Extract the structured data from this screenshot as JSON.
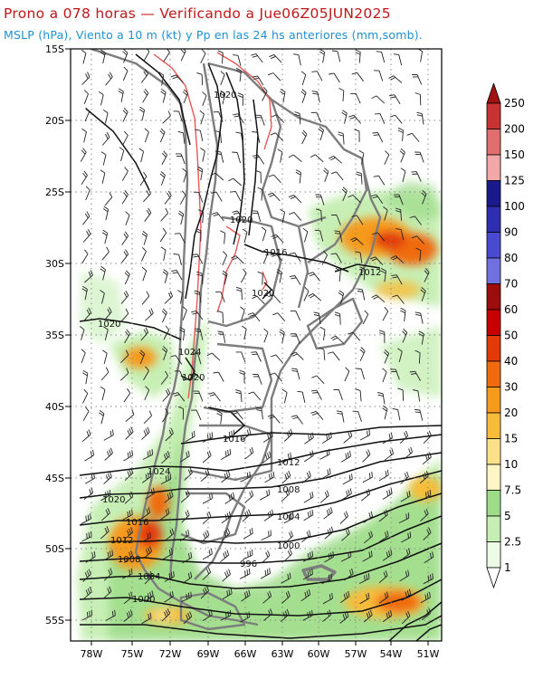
{
  "header": {
    "title": "Prono a 078 horas — Verificando a Jue06Z05JUN2025",
    "subtitle": "MSLP (hPa), Viento a 10 m (kt) y Pp en las 24 hs anteriores (mm,somb)."
  },
  "map": {
    "lat_ticks": [
      "15S",
      "20S",
      "25S",
      "30S",
      "35S",
      "40S",
      "45S",
      "50S",
      "55S"
    ],
    "lon_ticks": [
      "78W",
      "75W",
      "72W",
      "69W",
      "66W",
      "63W",
      "60W",
      "57W",
      "54W",
      "51W"
    ],
    "isobar_labels": [
      "1020",
      "1020",
      "1016",
      "1012",
      "1020",
      "1020",
      "1024",
      "1020",
      "1016",
      "1012",
      "1024",
      "1008",
      "1020",
      "1004",
      "1016",
      "1000",
      "1012",
      "996",
      "1008",
      "1004",
      "1000"
    ]
  },
  "colorbar": {
    "labels": [
      "250",
      "200",
      "150",
      "125",
      "100",
      "90",
      "80",
      "70",
      "60",
      "50",
      "40",
      "30",
      "20",
      "15",
      "10",
      "7.5",
      "5",
      "2.5",
      "1"
    ],
    "colors": [
      "#a11212",
      "#c83232",
      "#e06e6e",
      "#f2a8a8",
      "#1a1a8c",
      "#2e2eb0",
      "#4a4ad0",
      "#7070e0",
      "#9c0e0e",
      "#c80000",
      "#e23a0a",
      "#f06a10",
      "#f59a1a",
      "#f7bc3a",
      "#fbe28a",
      "#fdf6c4",
      "#9edc8a",
      "#c7efb5",
      "#edfbe6"
    ]
  }
}
